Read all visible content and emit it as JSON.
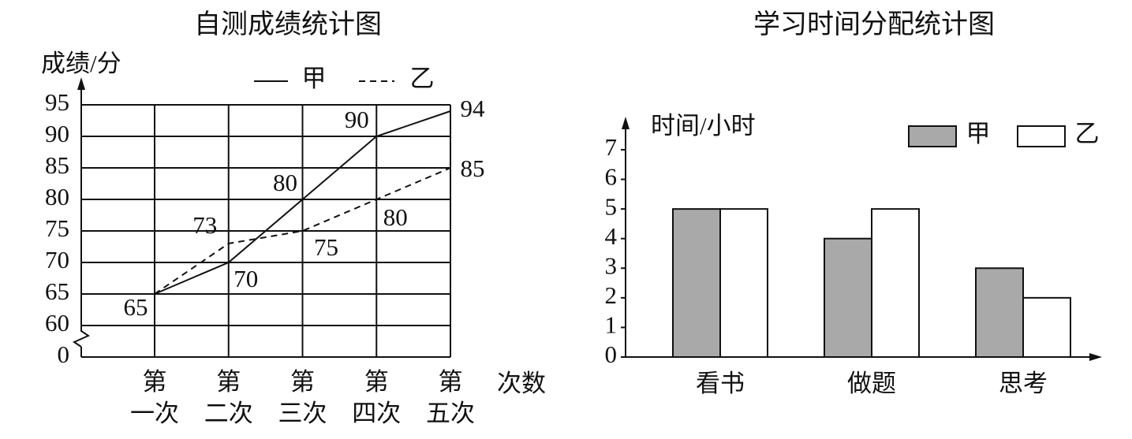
{
  "chart_data": [
    {
      "type": "line",
      "title": "自测成绩统计图",
      "y_label": "成绩/分",
      "x_label": "次数",
      "categories": [
        "第\n一次",
        "第\n二次",
        "第\n三次",
        "第\n四次",
        "第\n五次"
      ],
      "ylim": [
        0,
        95
      ],
      "yticks": [
        0,
        60,
        65,
        70,
        75,
        80,
        85,
        90,
        95
      ],
      "y_break": [
        0,
        60
      ],
      "grid": true,
      "series": [
        {
          "name": "甲",
          "color": "#111111",
          "dash": false,
          "values": [
            65,
            70,
            80,
            90,
            94
          ]
        },
        {
          "name": "乙",
          "color": "#111111",
          "dash": true,
          "values": [
            65,
            73,
            75,
            80,
            85
          ]
        }
      ]
    },
    {
      "type": "bar",
      "title": "学习时间分配统计图",
      "y_label": "时间/小时",
      "categories": [
        "看书",
        "做题",
        "思考"
      ],
      "ylim": [
        0,
        7
      ],
      "yticks": [
        0,
        1,
        2,
        3,
        4,
        5,
        6,
        7
      ],
      "series": [
        {
          "name": "甲",
          "color": "#a9a9a9",
          "values": [
            5,
            4,
            3
          ]
        },
        {
          "name": "乙",
          "color": "#ffffff",
          "values": [
            5,
            5,
            2
          ]
        }
      ]
    }
  ]
}
